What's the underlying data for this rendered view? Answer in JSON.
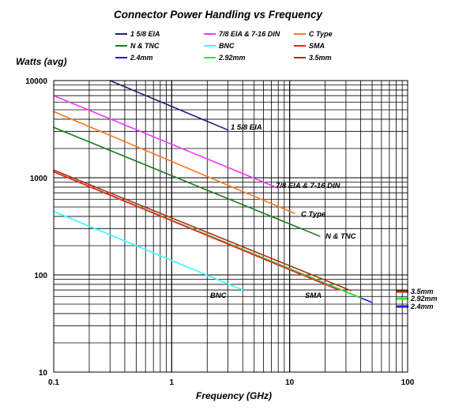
{
  "chart_data": {
    "type": "line",
    "title": "Connector Power Handling vs Frequency",
    "xlabel": "Frequency (GHz)",
    "ylabel": "Watts (avg)",
    "xscale": "log",
    "yscale": "log",
    "xlim": [
      0.1,
      100
    ],
    "ylim": [
      10,
      10000
    ],
    "x_ticks": [
      "0.1",
      "1",
      "10",
      "100"
    ],
    "y_ticks": [
      "10",
      "100",
      "1000",
      "10000"
    ],
    "grid": true,
    "legend_position": "top",
    "legend": [
      "1 5/8 EIA",
      "7/8 EIA & 7-16 DIN",
      "C Type",
      "N & TNC",
      "BNC",
      "SMA",
      "2.4mm",
      "2.92mm",
      "3.5mm"
    ],
    "series": [
      {
        "name": "1 5/8 EIA",
        "color": "#1f1f7a",
        "points": [
          [
            0.3,
            10000
          ],
          [
            3,
            3100
          ]
        ],
        "label": "1 5/8 EIA"
      },
      {
        "name": "7/8 EIA & 7-16 DIN",
        "color": "#ff33ff",
        "points": [
          [
            0.1,
            7000
          ],
          [
            8,
            780
          ]
        ],
        "label": "7/8 EIA & 7-16 DIN"
      },
      {
        "name": "C Type",
        "color": "#ff7722",
        "points": [
          [
            0.1,
            4800
          ],
          [
            11,
            430
          ]
        ],
        "label": "C Type"
      },
      {
        "name": "N & TNC",
        "color": "#1a7a1a",
        "points": [
          [
            0.1,
            3300
          ],
          [
            18,
            250
          ]
        ],
        "label": "N & TNC"
      },
      {
        "name": "BNC",
        "color": "#33ffff",
        "points": [
          [
            0.1,
            450
          ],
          [
            4,
            70
          ]
        ],
        "label": "BNC"
      },
      {
        "name": "SMA",
        "color": "#ff1a1a",
        "points": [
          [
            0.1,
            1150
          ],
          [
            26,
            70
          ]
        ],
        "label": "SMA"
      },
      {
        "name": "2.4mm",
        "color": "#1a1aff",
        "points": [
          [
            0.1,
            1150
          ],
          [
            50,
            52
          ]
        ],
        "label": "2.4mm"
      },
      {
        "name": "2.92mm",
        "color": "#22ee22",
        "points": [
          [
            0.1,
            1150
          ],
          [
            40,
            58
          ]
        ],
        "label": "2.92mm"
      },
      {
        "name": "3.5mm",
        "color": "#aa3311",
        "points": [
          [
            0.1,
            1200
          ],
          [
            33,
            69
          ]
        ],
        "label": "3.5mm"
      }
    ]
  }
}
